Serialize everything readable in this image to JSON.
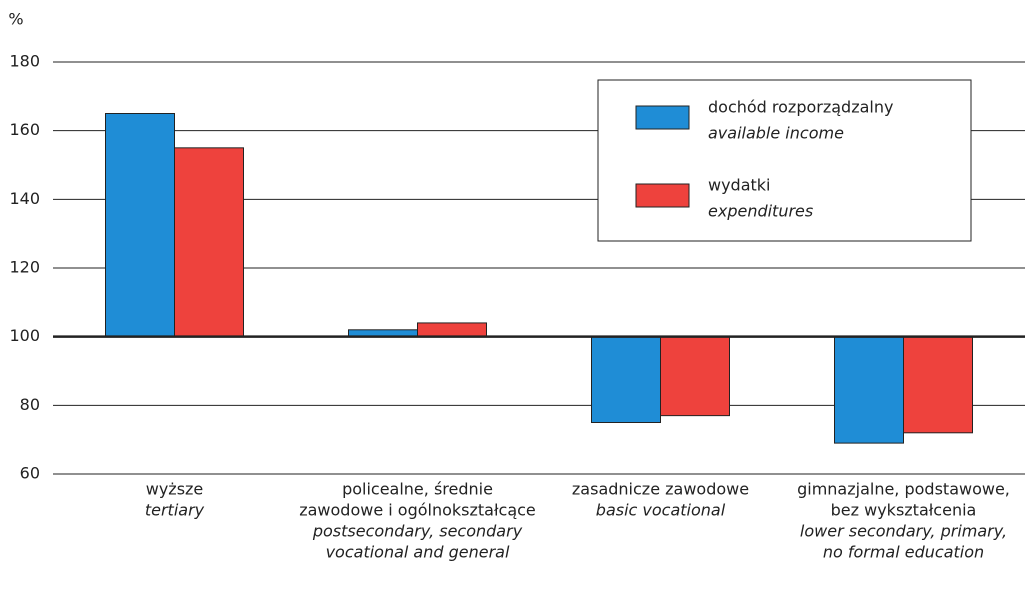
{
  "chart_data": {
    "type": "bar",
    "ylabel": "%",
    "categories": [
      {
        "pl": [
          "wyższe"
        ],
        "en": [
          "tertiary"
        ]
      },
      {
        "pl": [
          "policealne, średnie",
          "zawodowe i ogólnokształcące"
        ],
        "en": [
          "postsecondary, secondary",
          "vocational and general"
        ]
      },
      {
        "pl": [
          "zasadnicze zawodowe"
        ],
        "en": [
          "basic vocational"
        ]
      },
      {
        "pl": [
          "gimnazjalne, podstawowe,",
          "bez wykształcenia"
        ],
        "en": [
          "lower secondary, primary,",
          "no formal education"
        ]
      }
    ],
    "series": [
      {
        "name": {
          "pl": "dochód rozporządzalny",
          "en": "available income"
        },
        "color": "#1f8dd6",
        "values": [
          165,
          102,
          75,
          69
        ]
      },
      {
        "name": {
          "pl": "wydatki",
          "en": "expenditures"
        },
        "color": "#ee423d",
        "values": [
          155,
          104,
          77,
          72
        ]
      }
    ],
    "baseline": 100,
    "ylim": [
      60,
      180
    ],
    "yticks": [
      60,
      80,
      100,
      120,
      140,
      160,
      180
    ],
    "grid": true,
    "legend": "upper right"
  }
}
